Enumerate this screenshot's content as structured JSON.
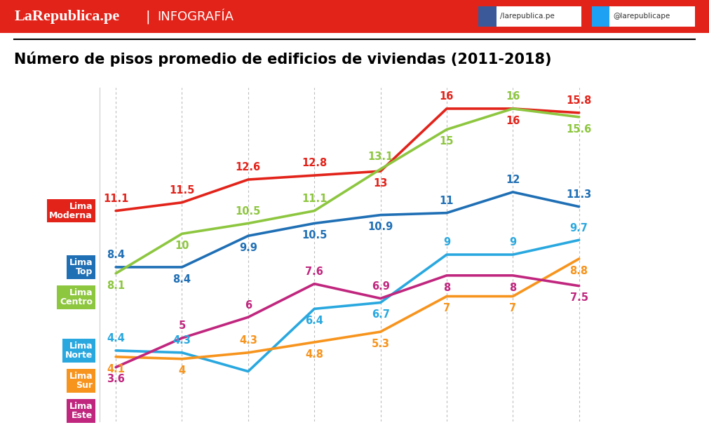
{
  "header": {
    "brand": "LaRepublica.pe",
    "separator": "|",
    "section": "INFOGRAFÍA",
    "facebook": "/larepublica.pe",
    "twitter": "@larepublicape"
  },
  "chart_data": {
    "type": "line",
    "title": "Número de pisos promedio de edificios de viviendas (2011-2018)",
    "categories": [
      null,
      null,
      null,
      null,
      null,
      null,
      null,
      null
    ],
    "ylim": [
      1,
      17
    ],
    "yticks": [],
    "tick_labels": false,
    "grid": true,
    "data_labels": true,
    "series": [
      {
        "name": "Lima Moderna",
        "color": "#e2231a",
        "values": [
          11.1,
          11.5,
          12.6,
          12.8,
          13,
          16,
          16,
          15.8
        ]
      },
      {
        "name": "Lima Top",
        "color": "#1f6fb5",
        "values": [
          8.4,
          8.4,
          9.9,
          10.5,
          10.9,
          11,
          12,
          11.3
        ]
      },
      {
        "name": "Lima Centro",
        "color": "#8dc63f",
        "values": [
          8.1,
          10,
          10.5,
          11.1,
          13.1,
          15,
          16,
          15.6
        ]
      },
      {
        "name": "Lima Norte",
        "color": "#29a8df",
        "values": [
          4.4,
          4.3,
          3.4,
          6.4,
          6.7,
          9,
          9,
          9.7
        ],
        "value_labels": [
          "4.4",
          "4.3",
          null,
          "6.4",
          "6.7",
          "9",
          "9",
          "9.7"
        ]
      },
      {
        "name": "Lima Sur",
        "color": "#f7941d",
        "values": [
          4.1,
          4,
          4.3,
          4.8,
          5.3,
          7,
          7,
          8.8
        ]
      },
      {
        "name": "Lima Este",
        "color": "#c0267e",
        "values": [
          3.6,
          5,
          6,
          7.6,
          6.9,
          8,
          8,
          7.5
        ]
      }
    ]
  }
}
